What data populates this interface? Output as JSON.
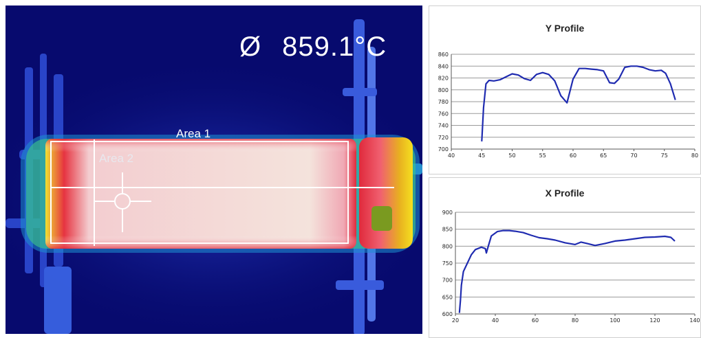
{
  "thermal_view": {
    "temperature_symbol": "Ø",
    "temperature_value": "859.1°C",
    "area1_label": "Area 1",
    "area2_label": "Area 2",
    "colors": {
      "background": "#070a6e",
      "hot": "#f4d9cf",
      "edge": "#e0283a",
      "warm": "#f5e020",
      "overlay": "#ffffff"
    }
  },
  "chart_data": [
    {
      "type": "line",
      "title": "Y Profile",
      "xlabel": "",
      "ylabel": "",
      "xlim": [
        40,
        80
      ],
      "ylim": [
        700,
        860
      ],
      "x_ticks": [
        40,
        45,
        50,
        55,
        60,
        65,
        70,
        75,
        80
      ],
      "y_ticks": [
        700,
        720,
        740,
        760,
        780,
        800,
        820,
        840,
        860
      ],
      "grid": "horizontal",
      "color": "#1f2bb0",
      "series": [
        {
          "x": [
            45,
            45.3,
            45.7,
            46.2,
            47,
            48,
            49,
            50,
            51,
            52,
            53,
            54,
            55,
            56,
            57,
            58,
            59,
            60,
            61,
            62,
            63,
            64,
            65,
            66,
            66.8,
            67.5,
            68.5,
            69.5,
            70.5,
            71.5,
            72.5,
            73.5,
            74.5,
            75.2,
            76,
            76.8
          ],
          "y": [
            713,
            770,
            810,
            816,
            815,
            817,
            822,
            827,
            825,
            819,
            816,
            826,
            829,
            826,
            815,
            790,
            778,
            818,
            836,
            836,
            835,
            834,
            832,
            812,
            811,
            818,
            838,
            840,
            840,
            838,
            834,
            832,
            833,
            828,
            810,
            783
          ]
        }
      ]
    },
    {
      "type": "line",
      "title": "X Profile",
      "xlabel": "",
      "ylabel": "",
      "xlim": [
        20,
        140
      ],
      "ylim": [
        600,
        900
      ],
      "x_ticks": [
        20,
        40,
        60,
        80,
        100,
        120,
        140
      ],
      "y_ticks": [
        600,
        650,
        700,
        750,
        800,
        850,
        900
      ],
      "grid": "horizontal",
      "color": "#1f2bb0",
      "series": [
        {
          "x": [
            22,
            22.5,
            23,
            24,
            26,
            28,
            30,
            33,
            35,
            35.5,
            36.5,
            38,
            41,
            44,
            47,
            50,
            54,
            58,
            62,
            66,
            70,
            75,
            80,
            83,
            86,
            90,
            95,
            100,
            105,
            110,
            115,
            120,
            125,
            128,
            130
          ],
          "y": [
            603,
            640,
            685,
            725,
            750,
            775,
            790,
            797,
            793,
            780,
            800,
            830,
            843,
            846,
            846,
            844,
            840,
            832,
            825,
            822,
            818,
            810,
            805,
            812,
            808,
            802,
            808,
            815,
            818,
            822,
            826,
            827,
            829,
            826,
            815
          ]
        }
      ]
    }
  ]
}
